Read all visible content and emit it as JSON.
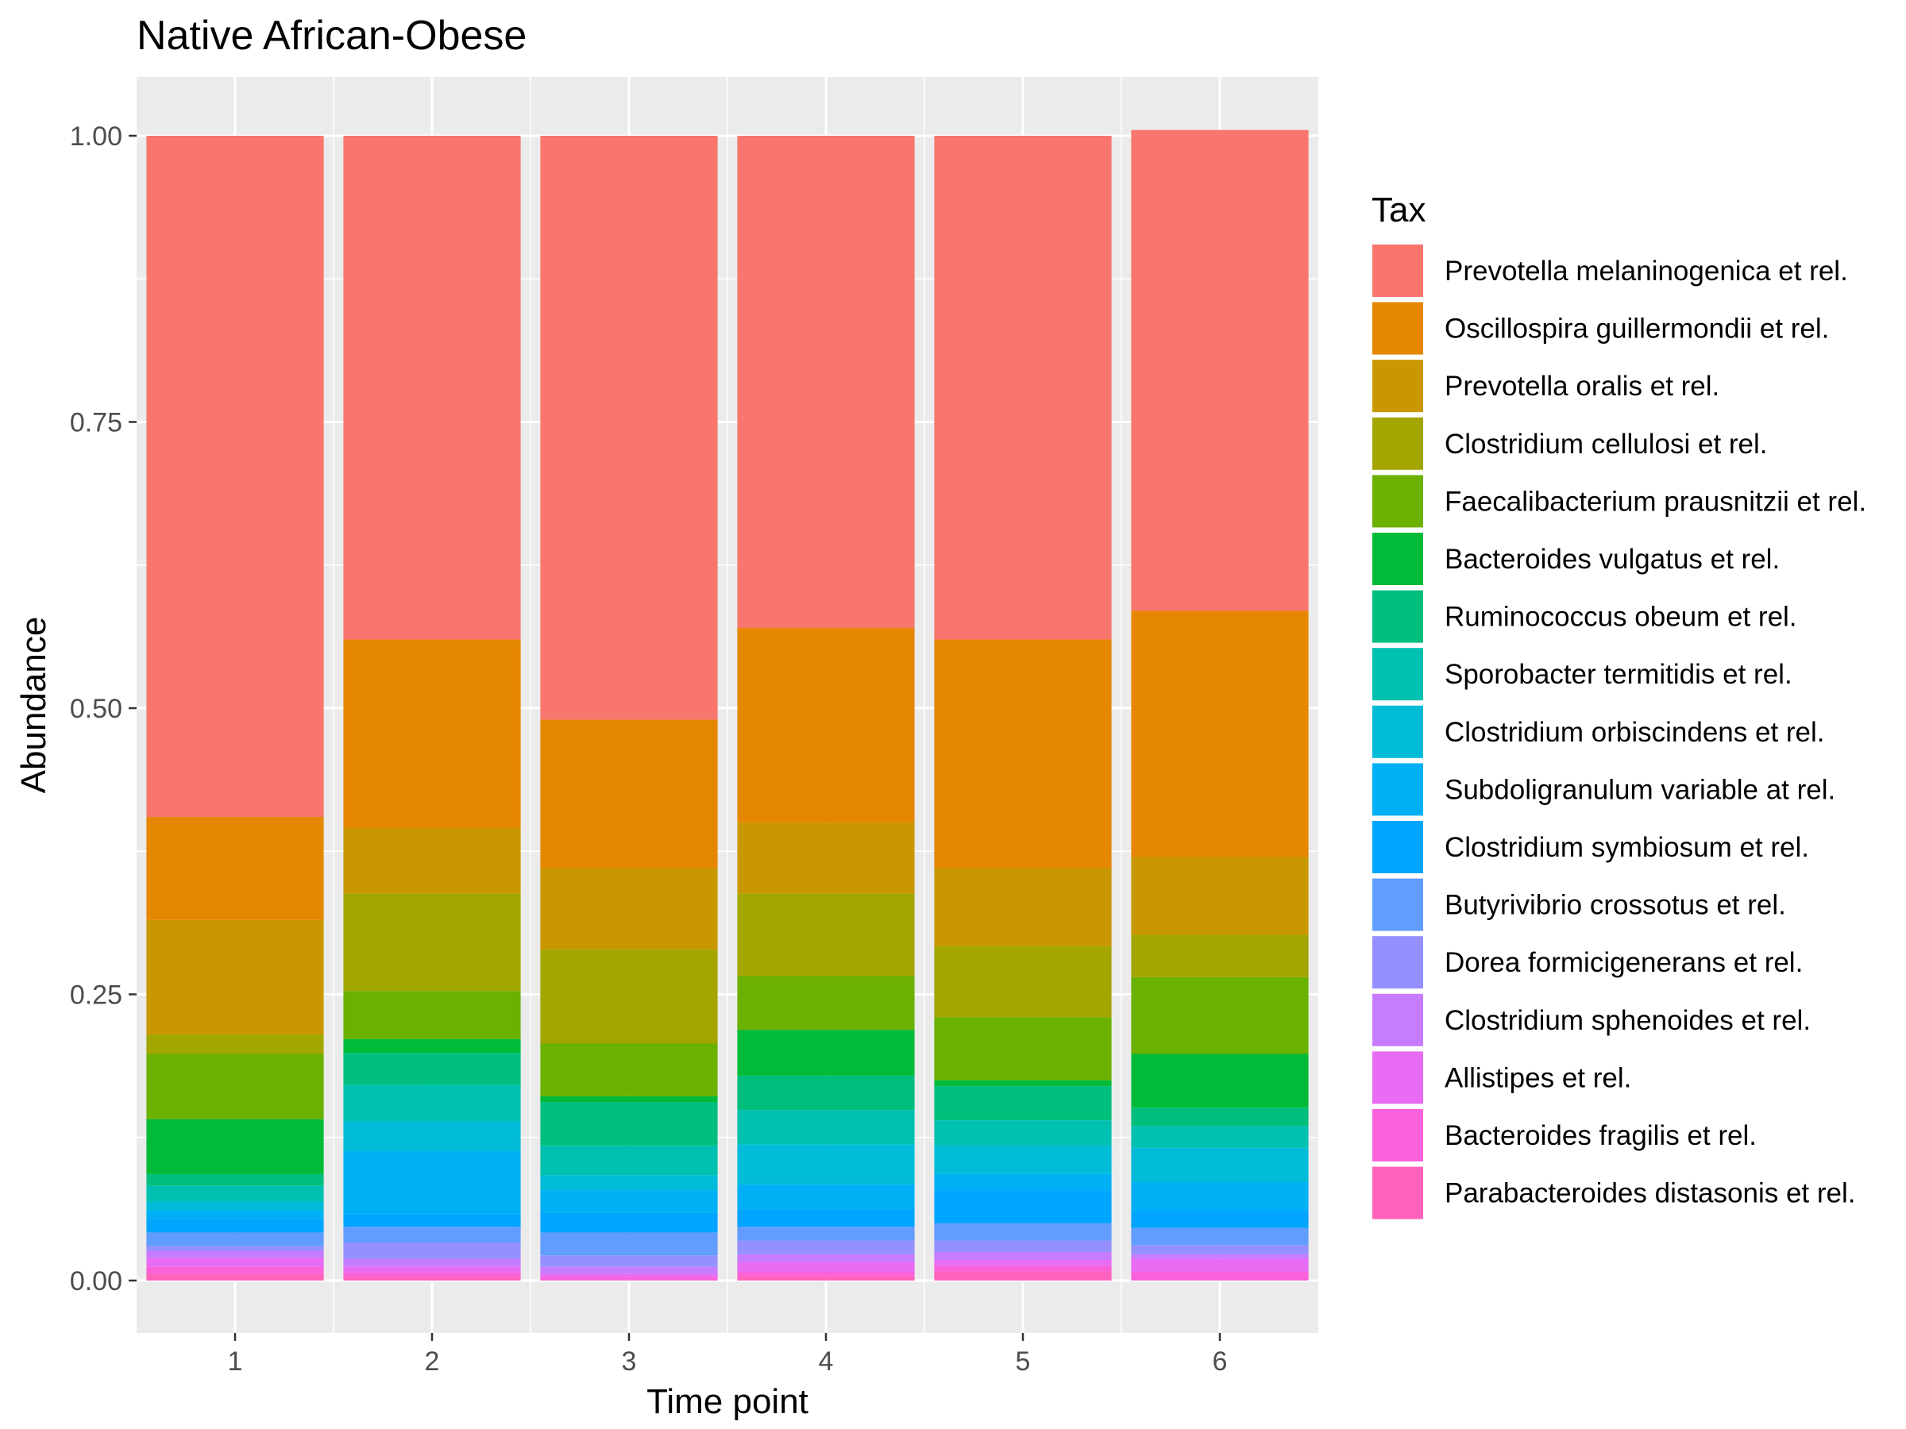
{
  "chart_data": {
    "type": "bar",
    "stacked": true,
    "title": "Native African-Obese",
    "xlabel": "Time point",
    "ylabel": "Abundance",
    "categories": [
      "1",
      "2",
      "3",
      "4",
      "5",
      "6"
    ],
    "ylim": [
      0,
      1.05
    ],
    "yticks": [
      0,
      0.25,
      0.5,
      0.75,
      1
    ],
    "ytick_labels": [
      "0.00",
      "0.25",
      "0.50",
      "0.75",
      "1.00"
    ],
    "grid": true,
    "legend": {
      "title": "Tax",
      "position": "right"
    },
    "series": [
      {
        "name": "Prevotella melaninogenica et rel.",
        "color": "#F8766D",
        "values": [
          0.595,
          0.44,
          0.51,
          0.43,
          0.44,
          0.42
        ]
      },
      {
        "name": "Oscillospira guillermondii et rel.",
        "color": "#E58700",
        "values": [
          0.09,
          0.165,
          0.13,
          0.17,
          0.2,
          0.215
        ]
      },
      {
        "name": "Prevotella oralis et rel.",
        "color": "#C99800",
        "values": [
          0.1,
          0.057,
          0.071,
          0.062,
          0.068,
          0.068
        ]
      },
      {
        "name": "Clostridium cellulosi et rel.",
        "color": "#A3A500",
        "values": [
          0.017,
          0.085,
          0.082,
          0.072,
          0.062,
          0.037
        ]
      },
      {
        "name": "Faecalibacterium prausnitzii et rel.",
        "color": "#6BB100",
        "values": [
          0.057,
          0.042,
          0.046,
          0.047,
          0.055,
          0.067
        ]
      },
      {
        "name": "Bacteroides vulgatus et rel.",
        "color": "#00BA38",
        "values": [
          0.048,
          0.012,
          0.005,
          0.04,
          0.005,
          0.047
        ]
      },
      {
        "name": "Ruminococcus obeum et rel.",
        "color": "#00BF7D",
        "values": [
          0.01,
          0.028,
          0.038,
          0.03,
          0.03,
          0.016
        ]
      },
      {
        "name": "Sporobacter termitidis et rel.",
        "color": "#00C0AF",
        "values": [
          0.014,
          0.032,
          0.026,
          0.03,
          0.022,
          0.019
        ]
      },
      {
        "name": "Clostridium orbiscindens et rel.",
        "color": "#00BCD8",
        "values": [
          0.008,
          0.026,
          0.013,
          0.035,
          0.025,
          0.03
        ]
      },
      {
        "name": "Subdoligranulum variable at rel.",
        "color": "#00B0F6",
        "values": [
          0.007,
          0.055,
          0.02,
          0.022,
          0.014,
          0.025
        ]
      },
      {
        "name": "Clostridium symbiosum et rel.",
        "color": "#00A5FF",
        "values": [
          0.012,
          0.011,
          0.017,
          0.015,
          0.029,
          0.015
        ]
      },
      {
        "name": "Butyrivibrio crossotus et rel.",
        "color": "#619CFF",
        "values": [
          0.012,
          0.014,
          0.02,
          0.012,
          0.015,
          0.015
        ]
      },
      {
        "name": "Dorea formicigenerans et rel.",
        "color": "#9590FF",
        "values": [
          0.004,
          0.014,
          0.01,
          0.012,
          0.01,
          0.008
        ]
      },
      {
        "name": "Clostridium sphenoides et rel.",
        "color": "#C77CFF",
        "values": [
          0.006,
          0.007,
          0.006,
          0.007,
          0.007,
          0.004
        ]
      },
      {
        "name": "Allistipes et rel.",
        "color": "#E76BF3",
        "values": [
          0.008,
          0.005,
          0.003,
          0.008,
          0.005,
          0.011
        ]
      },
      {
        "name": "Bacteroides fragilis et rel.",
        "color": "#FA62DB",
        "values": [
          0.006,
          0.004,
          0.003,
          0.004,
          0.005,
          0.008
        ]
      },
      {
        "name": "Parabacteroides distasonis et rel.",
        "color": "#FF62BC",
        "values": [
          0.006,
          0.003,
          0.0,
          0.004,
          0.008,
          0.0
        ]
      }
    ]
  }
}
